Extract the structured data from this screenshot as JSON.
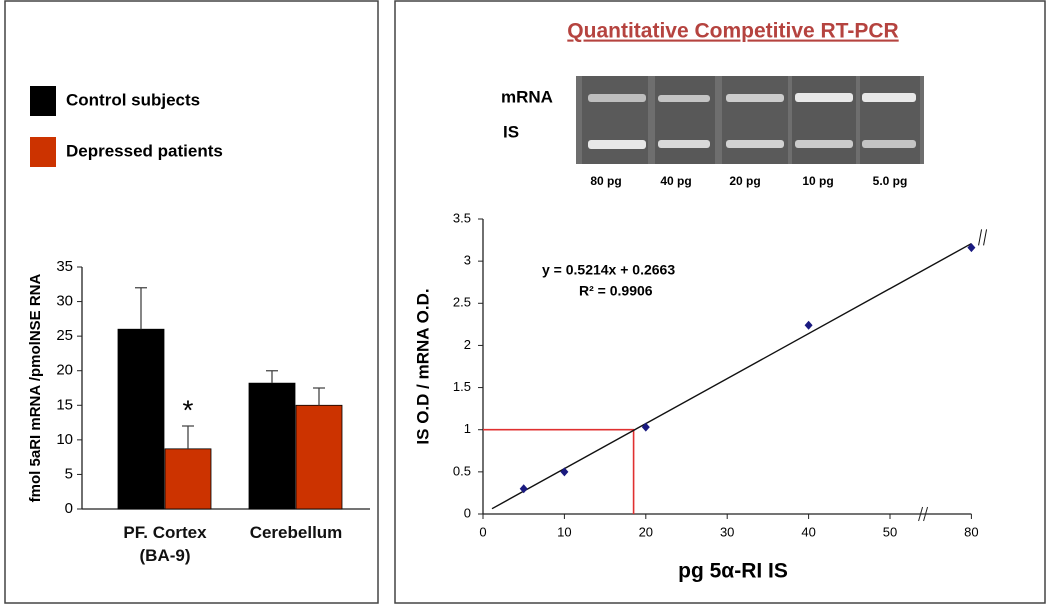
{
  "chart_data": [
    {
      "type": "bar",
      "categories": [
        "PF. Cortex\n(BA-9)",
        "Cerebellum"
      ],
      "series": [
        {
          "name": "Control subjects",
          "color": "#000000",
          "values": [
            26,
            18.2
          ],
          "errors": [
            6,
            1.8
          ]
        },
        {
          "name": "Depressed patients",
          "color": "#cc3300",
          "values": [
            8.7,
            15
          ],
          "errors": [
            3.3,
            2.5
          ]
        }
      ],
      "y_label": "fmol 5aRI mRNA /pmolNSE RNA",
      "annotation": "*",
      "ylim": [
        0,
        35
      ],
      "yticks": [
        0,
        5,
        10,
        15,
        20,
        25,
        30,
        35
      ],
      "legend": "top-left"
    },
    {
      "type": "scatter",
      "title": "Quantitative Competitive RT-PCR",
      "x": [
        5,
        10,
        20,
        40,
        80
      ],
      "values": [
        0.3,
        0.5,
        1.03,
        2.24,
        3.16
      ],
      "color": "#1a1a80",
      "x_label": "pg 5α-RI IS",
      "y_label": "IS O.D / mRNA O.D.",
      "equation": "y = 0.5214x + 0.2663",
      "r_squared": "R² = 0.9906",
      "xlim": [
        0,
        80
      ],
      "xticks": [
        0,
        10,
        20,
        30,
        40,
        50,
        80
      ],
      "x_break": 54,
      "ylim": [
        0,
        3.5
      ],
      "yticks": [
        0,
        0.5,
        1,
        1.5,
        2,
        2.5,
        3,
        3.5
      ],
      "reference": {
        "x": 18.5,
        "y": 1,
        "color": "#e03030"
      }
    }
  ],
  "gel": {
    "row_labels": [
      "mRNA",
      "IS"
    ],
    "lane_labels": [
      "80 pg",
      "40 pg",
      "20 pg",
      "10 pg",
      "5.0 pg"
    ]
  }
}
